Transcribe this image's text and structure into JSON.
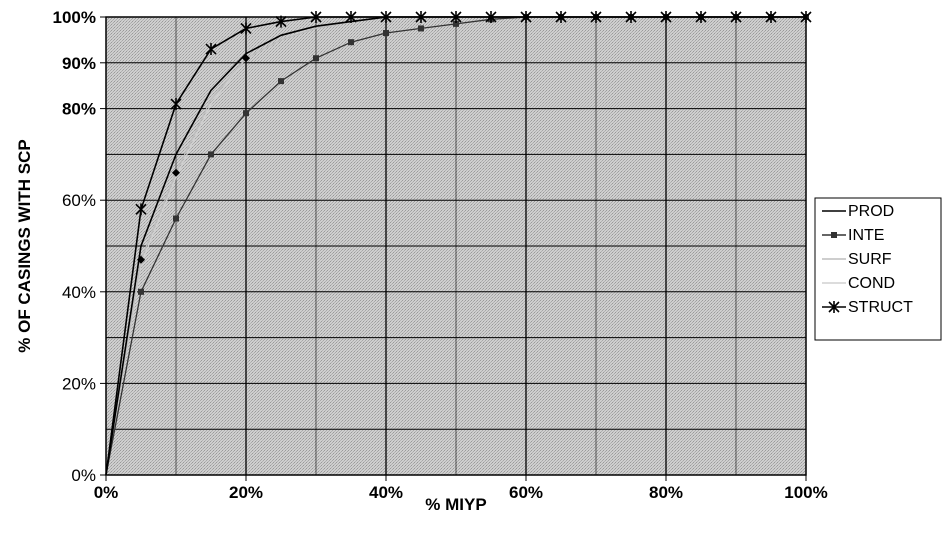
{
  "chart_data": {
    "type": "line",
    "title": "",
    "xlabel": "% MIYP",
    "ylabel": "% OF CASINGS WITH SCP",
    "xlim": [
      0,
      100
    ],
    "ylim": [
      0,
      100
    ],
    "x_ticks": [
      {
        "value": 0,
        "label": "0%"
      },
      {
        "value": 20,
        "label": "20%"
      },
      {
        "value": 40,
        "label": "40%"
      },
      {
        "value": 60,
        "label": "60%"
      },
      {
        "value": 80,
        "label": "80%"
      },
      {
        "value": 100,
        "label": "100%"
      }
    ],
    "y_ticks": [
      {
        "value": 0,
        "label": "0%",
        "bold": false
      },
      {
        "value": 20,
        "label": "20%",
        "bold": false
      },
      {
        "value": 40,
        "label": "40%",
        "bold": false
      },
      {
        "value": 60,
        "label": "60%",
        "bold": false
      },
      {
        "value": 80,
        "label": "80%",
        "bold": true
      },
      {
        "value": 90,
        "label": "90%",
        "bold": true
      },
      {
        "value": 100,
        "label": "100%",
        "bold": true
      }
    ],
    "grid": true,
    "legend_position": "right",
    "series": [
      {
        "name": "PROD",
        "color": "#000000",
        "marker": "none",
        "x": [
          0,
          5,
          10,
          15,
          20,
          25,
          30,
          35,
          40,
          45,
          50,
          55,
          60,
          65,
          70,
          75,
          80,
          85,
          90,
          95,
          100
        ],
        "y": [
          0,
          50,
          70,
          84,
          92,
          96,
          98,
          99,
          100,
          100,
          100,
          100,
          100,
          100,
          100,
          100,
          100,
          100,
          100,
          100,
          100
        ]
      },
      {
        "name": "INTE",
        "color": "#333333",
        "marker": "square",
        "x": [
          0,
          5,
          10,
          15,
          20,
          25,
          30,
          35,
          40,
          45,
          50,
          55,
          60,
          65,
          70,
          75,
          80,
          85,
          90,
          95,
          100
        ],
        "y": [
          0,
          40,
          56,
          70,
          79,
          86,
          91,
          94.5,
          96.5,
          97.5,
          98.5,
          99.5,
          100,
          100,
          100,
          100,
          100,
          100,
          100,
          100,
          100
        ]
      },
      {
        "name": "SURF",
        "color": "#bdbdbd",
        "marker": "none",
        "x": [
          0,
          5,
          10,
          15,
          20,
          25,
          30,
          35,
          40,
          45,
          50,
          55,
          60,
          65,
          70,
          75,
          80,
          85,
          90,
          95,
          100
        ],
        "y": [
          0,
          47,
          66,
          82,
          91,
          95,
          97.5,
          99,
          100,
          100,
          100,
          100,
          100,
          100,
          100,
          100,
          100,
          100,
          100,
          100,
          100
        ]
      },
      {
        "name": "COND",
        "color": "#d0d0d0",
        "marker": "none",
        "x": [
          0,
          5,
          10,
          15,
          20,
          25,
          30,
          35,
          40,
          45,
          50,
          55,
          60,
          65,
          70,
          75,
          80,
          85,
          90,
          95,
          100
        ],
        "y": [
          0,
          46,
          65,
          81,
          91,
          95,
          98,
          99,
          100,
          100,
          100,
          100,
          100,
          100,
          100,
          100,
          100,
          100,
          100,
          100,
          100
        ]
      },
      {
        "name": "STRUCT",
        "color": "#000000",
        "marker": "star",
        "x": [
          0,
          5,
          10,
          15,
          20,
          25,
          30,
          35,
          40,
          45,
          50,
          55,
          60,
          65,
          70,
          75,
          80,
          85,
          90,
          95,
          100
        ],
        "y": [
          0,
          58,
          81,
          93,
          97.5,
          99,
          100,
          100,
          100,
          100,
          100,
          100,
          100,
          100,
          100,
          100,
          100,
          100,
          100,
          100,
          100
        ]
      }
    ],
    "annotations": [
      {
        "series": "SURF",
        "x": 10,
        "y": 66,
        "marker": "diamond"
      },
      {
        "series": "SURF",
        "x": 20,
        "y": 91,
        "marker": "diamond"
      },
      {
        "series": "SURF",
        "x": 5,
        "y": 47,
        "marker": "diamond"
      }
    ]
  }
}
